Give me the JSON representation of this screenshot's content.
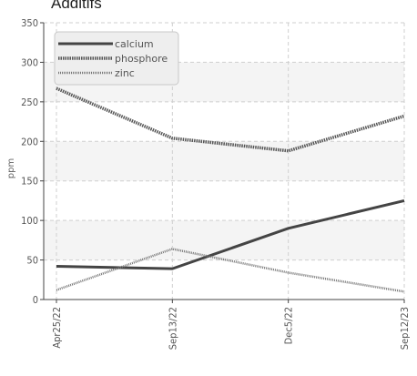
{
  "chart_data": {
    "type": "line",
    "title": "Additifs",
    "xlabel": "",
    "ylabel": "ppm",
    "categories": [
      "Apr25/22",
      "Sep13/22",
      "Dec5/22",
      "Sep12/23"
    ],
    "ylim": [
      0,
      350
    ],
    "yticks": [
      0,
      50,
      100,
      150,
      200,
      250,
      300,
      350
    ],
    "grid": true,
    "legend_position": "top-left",
    "series": [
      {
        "name": "calcium",
        "values": [
          42,
          39,
          90,
          125
        ],
        "color": "#444444",
        "style": "solid"
      },
      {
        "name": "phosphore",
        "values": [
          267,
          204,
          188,
          232
        ],
        "color": "#555555",
        "style": "dotted"
      },
      {
        "name": "zinc",
        "values": [
          12,
          64,
          34,
          10
        ],
        "color": "#777777",
        "style": "dashed"
      }
    ]
  }
}
